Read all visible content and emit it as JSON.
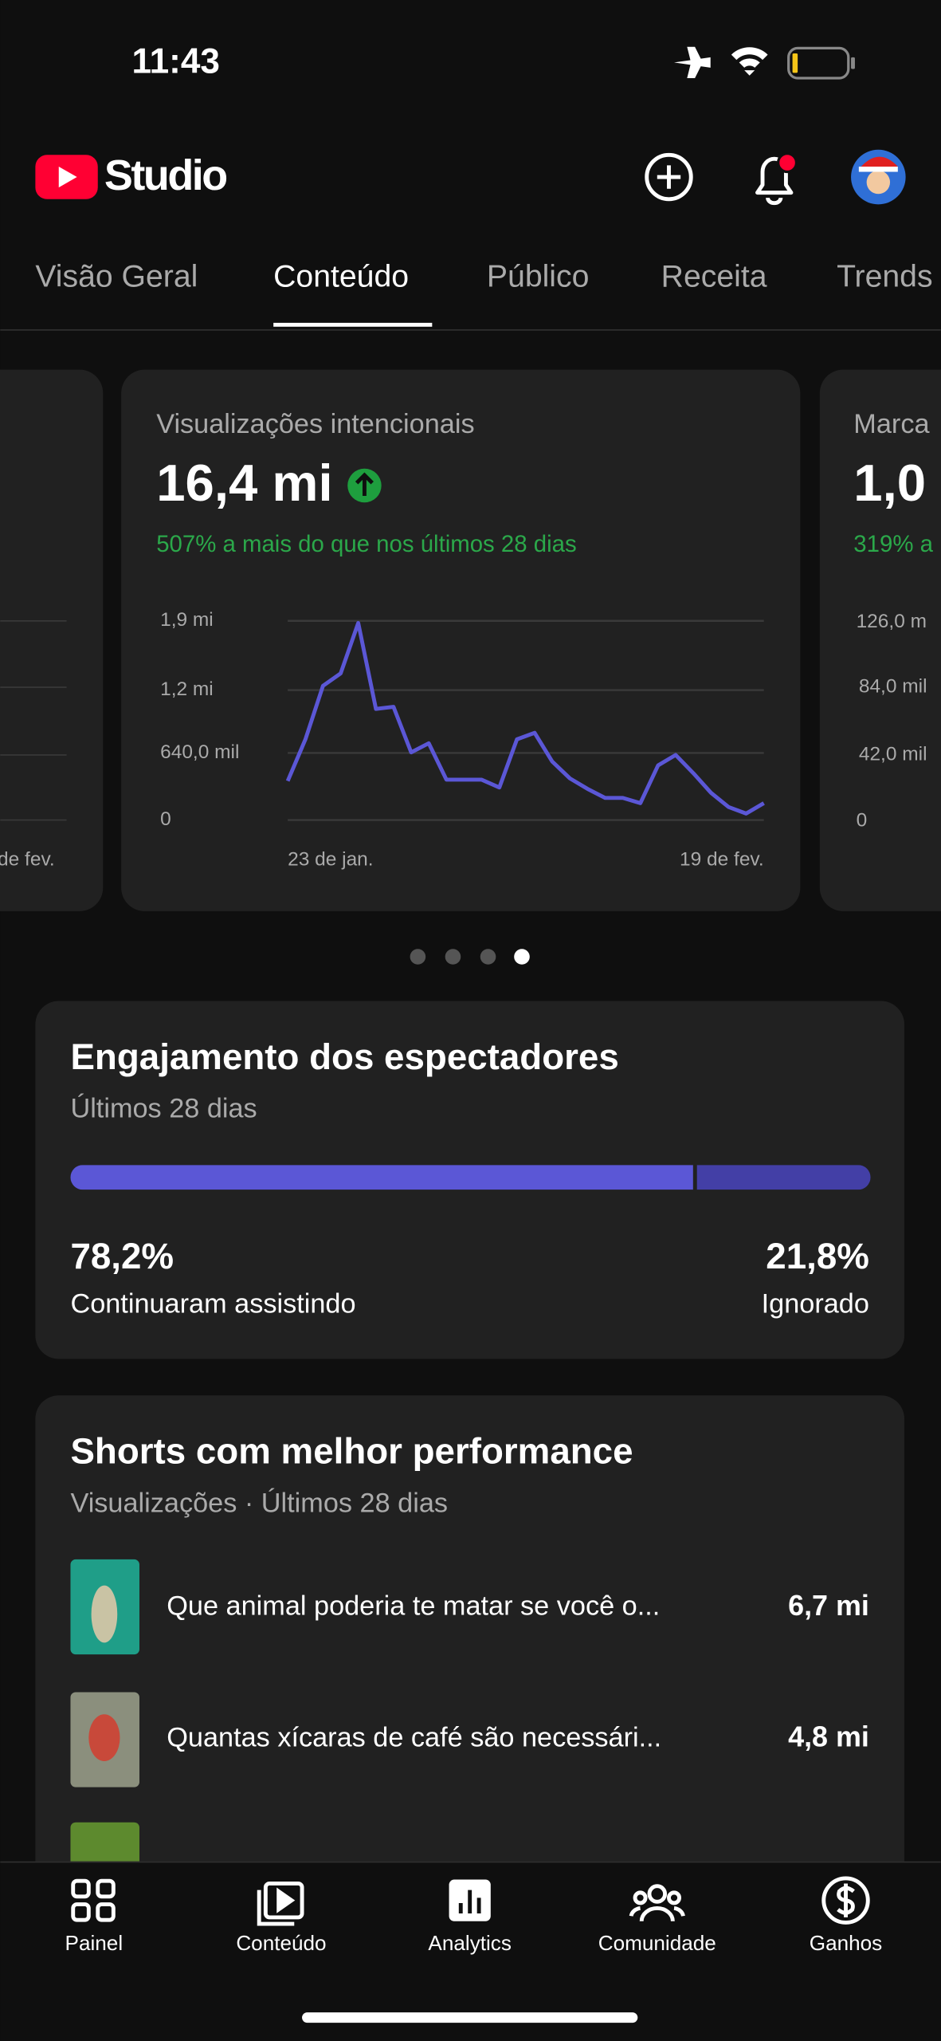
{
  "status_bar": {
    "time": "11:43"
  },
  "header": {
    "title": "Studio"
  },
  "tabs": [
    "Visão Geral",
    "Conteúdo",
    "Público",
    "Receita",
    "Trends"
  ],
  "chart_data": {
    "type": "line",
    "title": "Visualizações intencionais",
    "total": "16,4 mi",
    "change": "507% a mais do que nos últimos 28 dias",
    "categories": [
      "23 de jan.",
      null,
      null,
      null,
      null,
      null,
      null,
      null,
      null,
      null,
      null,
      null,
      null,
      null,
      null,
      null,
      null,
      null,
      null,
      null,
      null,
      null,
      null,
      null,
      null,
      null,
      null,
      "19 de fev."
    ],
    "series": [
      {
        "color": "#5b57d6",
        "values": [
          372000,
          770000,
          1280000,
          1400000,
          1880000,
          1060000,
          1080000,
          646000,
          733000,
          385000,
          385000,
          385000,
          310000,
          770000,
          832000,
          559000,
          397000,
          298000,
          211000,
          211000,
          161000,
          522000,
          621000,
          447000,
          261000,
          124000,
          62000,
          161000
        ]
      }
    ],
    "ylim": [
      0,
      1900000
    ],
    "yticks": [
      0,
      {
        "value": 640000,
        "label": "640,0 mil"
      },
      {
        "value": 1240000,
        "label": "1,2 mi"
      },
      {
        "value": 1900000,
        "label": "1,9 mi"
      }
    ],
    "grid": true
  },
  "side_cards": {
    "left": {
      "x_label": "de fev."
    },
    "right": {
      "title": "Marca",
      "total": "1,0",
      "change": "319% a",
      "yticks": [
        "126,0 m",
        "84,0 mil",
        "42,0 mil",
        "0"
      ]
    }
  },
  "engagement": {
    "title": "Engajamento dos espectadores",
    "subtitle": "Últimos 28 dias",
    "values": [
      78.2,
      21.8
    ],
    "value_labels": [
      "78,2%",
      "21,8%"
    ],
    "labels": [
      "Continuaram assistindo",
      "Ignorado"
    ],
    "colors": [
      "#5b57d6",
      "#433fa6"
    ]
  },
  "shorts": {
    "title": "Shorts com melhor performance",
    "subtitle": "Visualizações · Últimos 28 dias",
    "items": [
      {
        "title": "Que animal poderia te matar se você o...",
        "views": "6,7 mi"
      },
      {
        "title": "Quantas xícaras de café são necessári...",
        "views": "4,8 mi"
      }
    ]
  },
  "nav": [
    "Painel",
    "Conteúdo",
    "Analytics",
    "Comunidade",
    "Ganhos"
  ]
}
